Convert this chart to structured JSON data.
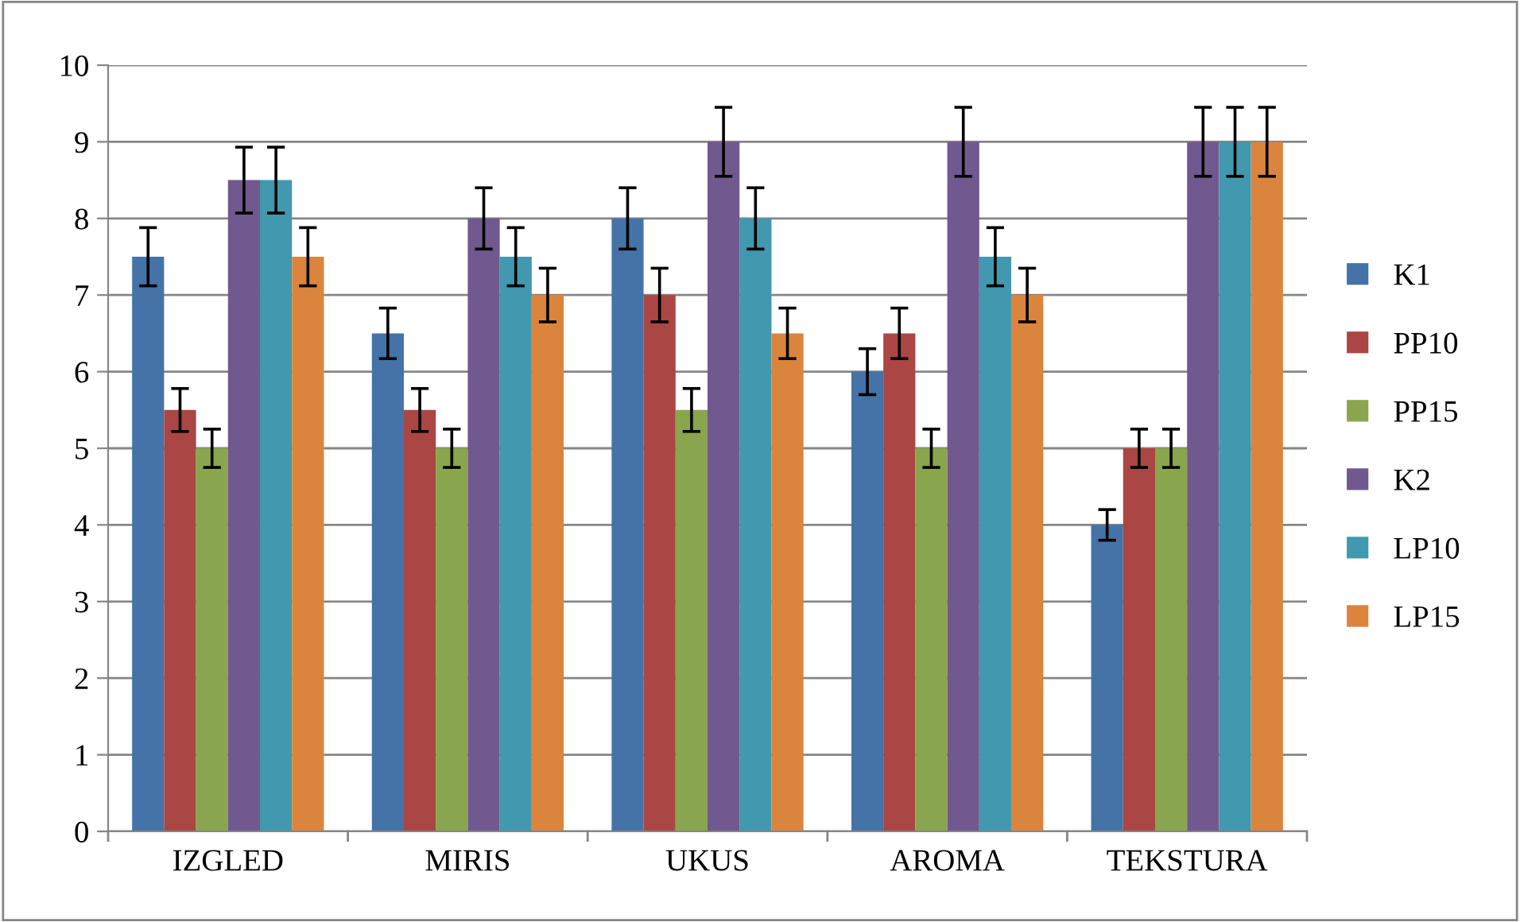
{
  "chart_data": {
    "type": "bar",
    "categories": [
      "IZGLED",
      "MIRIS",
      "UKUS",
      "AROMA",
      "TEKSTURA"
    ],
    "series": [
      {
        "name": "K1",
        "color": "#4572a7",
        "values": [
          7.5,
          6.5,
          8,
          6,
          4
        ],
        "errors": [
          0.38,
          0.33,
          0.4,
          0.3,
          0.2
        ]
      },
      {
        "name": "PP10",
        "color": "#aa4643",
        "values": [
          5.5,
          5.5,
          7,
          6.5,
          5
        ],
        "errors": [
          0.28,
          0.28,
          0.35,
          0.33,
          0.25
        ]
      },
      {
        "name": "PP15",
        "color": "#89a54e",
        "values": [
          5,
          5,
          5.5,
          5,
          5
        ],
        "errors": [
          0.25,
          0.25,
          0.28,
          0.25,
          0.25
        ]
      },
      {
        "name": "K2",
        "color": "#71588f",
        "values": [
          8.5,
          8,
          9,
          9,
          9
        ],
        "errors": [
          0.43,
          0.4,
          0.45,
          0.45,
          0.45
        ]
      },
      {
        "name": "LP10",
        "color": "#4198af",
        "values": [
          8.5,
          7.5,
          8,
          7.5,
          9
        ],
        "errors": [
          0.43,
          0.38,
          0.4,
          0.38,
          0.45
        ]
      },
      {
        "name": "LP15",
        "color": "#db843d",
        "values": [
          7.5,
          7,
          6.5,
          7,
          9
        ],
        "errors": [
          0.38,
          0.35,
          0.33,
          0.35,
          0.45
        ]
      }
    ],
    "ylim": [
      0,
      10
    ],
    "yticks": [
      0,
      1,
      2,
      3,
      4,
      5,
      6,
      7,
      8,
      9,
      10
    ],
    "grid": "y",
    "legend": "right"
  }
}
